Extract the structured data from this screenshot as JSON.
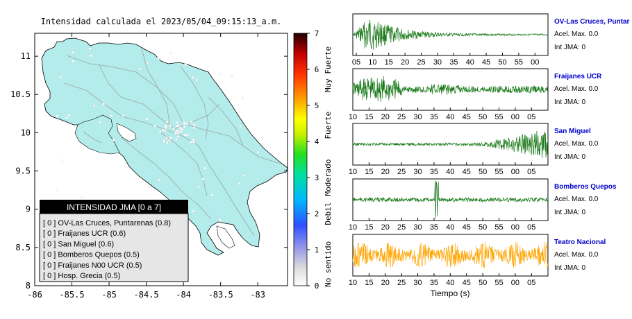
{
  "title": "Intensidad calculada el 2023/05/04_09:15:13_a.m.",
  "map": {
    "x_ticks": [
      "-86",
      "-85.5",
      "-85",
      "-84.5",
      "-84",
      "-83.5",
      "-83"
    ],
    "y_ticks": [
      "11",
      "10.5",
      "10",
      "9.5",
      "9",
      "8.5",
      "8"
    ],
    "xlim": [
      -86,
      -82.6
    ],
    "ylim": [
      8,
      11.3
    ]
  },
  "scale": {
    "ticks": [
      "0",
      "1",
      "2",
      "3",
      "4",
      "5",
      "6",
      "7"
    ],
    "range": [
      0,
      7
    ],
    "category_labels": [
      "No sentido",
      "Debil",
      "Moderado",
      "Fuerte",
      "Muy Fuerte"
    ]
  },
  "legend": {
    "title": "INTENSIDAD JMA [0 a 7]",
    "items": [
      "[ 0 ]  OV-Las Cruces, Puntarenas (0.8)",
      "[ 0 ]  Fraijanes UCR (0.6)",
      "[ 0 ]  San Miguel (0.6)",
      "[ 0 ]  Bomberos Quepos (0.5)",
      "[ 0 ]  Fraijanes N00 UCR (0.5)",
      "[ 0 ]  Hosp. Grecia (0.5)"
    ]
  },
  "traces_xlabel": "Tiempo (s)",
  "chart_data": {
    "type": "line",
    "title": "Intensidad calculada el 2023/05/04_09:15:13_a.m.",
    "xlabel": "Tiempo (s)",
    "traces": [
      {
        "name": "OV-Las Cruces, Puntar",
        "tick_labels": [
          "05",
          "10",
          "15",
          "20",
          "25",
          "30",
          "35",
          "40",
          "45",
          "50",
          "55",
          "00"
        ],
        "accel_label": "Acel. Max. 0.0",
        "jma_label": "Int JMA: 0",
        "color": "#1a7a1a",
        "envelope": "early-decay",
        "event_tick": ""
      },
      {
        "name": "Fraijanes UCR",
        "tick_labels": [
          "10",
          "15",
          "20",
          "25",
          "30",
          "35",
          "40",
          "45",
          "50",
          "55",
          "00",
          "05"
        ],
        "accel_label": "Acel. Max. 0.0",
        "jma_label": "Int JMA: 0",
        "color": "#1a7a1a",
        "envelope": "early-burst",
        "event_tick": ""
      },
      {
        "name": "San Miguel",
        "tick_labels": [
          "10",
          "15",
          "20",
          "25",
          "30",
          "35",
          "40",
          "45",
          "50",
          "55",
          "00",
          "05"
        ],
        "accel_label": "Acel. Max. 0.0",
        "jma_label": "Int JMA: 0",
        "color": "#1a7a1a",
        "envelope": "late-rise",
        "event_tick": ""
      },
      {
        "name": "Bomberos Quepos",
        "tick_labels": [
          "10",
          "15",
          "20",
          "25",
          "30",
          "35",
          "40",
          "45",
          "50",
          "55",
          "00",
          "05"
        ],
        "accel_label": "Acel. Max. 0.0",
        "jma_label": "Int JMA: 0",
        "color": "#1a7a1a",
        "envelope": "spike",
        "event_tick": ""
      },
      {
        "name": "Teatro Nacional",
        "tick_labels": [
          "10",
          "15",
          "20",
          "25",
          "30",
          "35",
          "40",
          "45",
          "50",
          "55",
          "00",
          "05"
        ],
        "accel_label": "Acel. Max. 0.0",
        "jma_label": "Int JMA: 0",
        "color": "#ffa500",
        "envelope": "noise",
        "event_tick": ""
      }
    ]
  }
}
